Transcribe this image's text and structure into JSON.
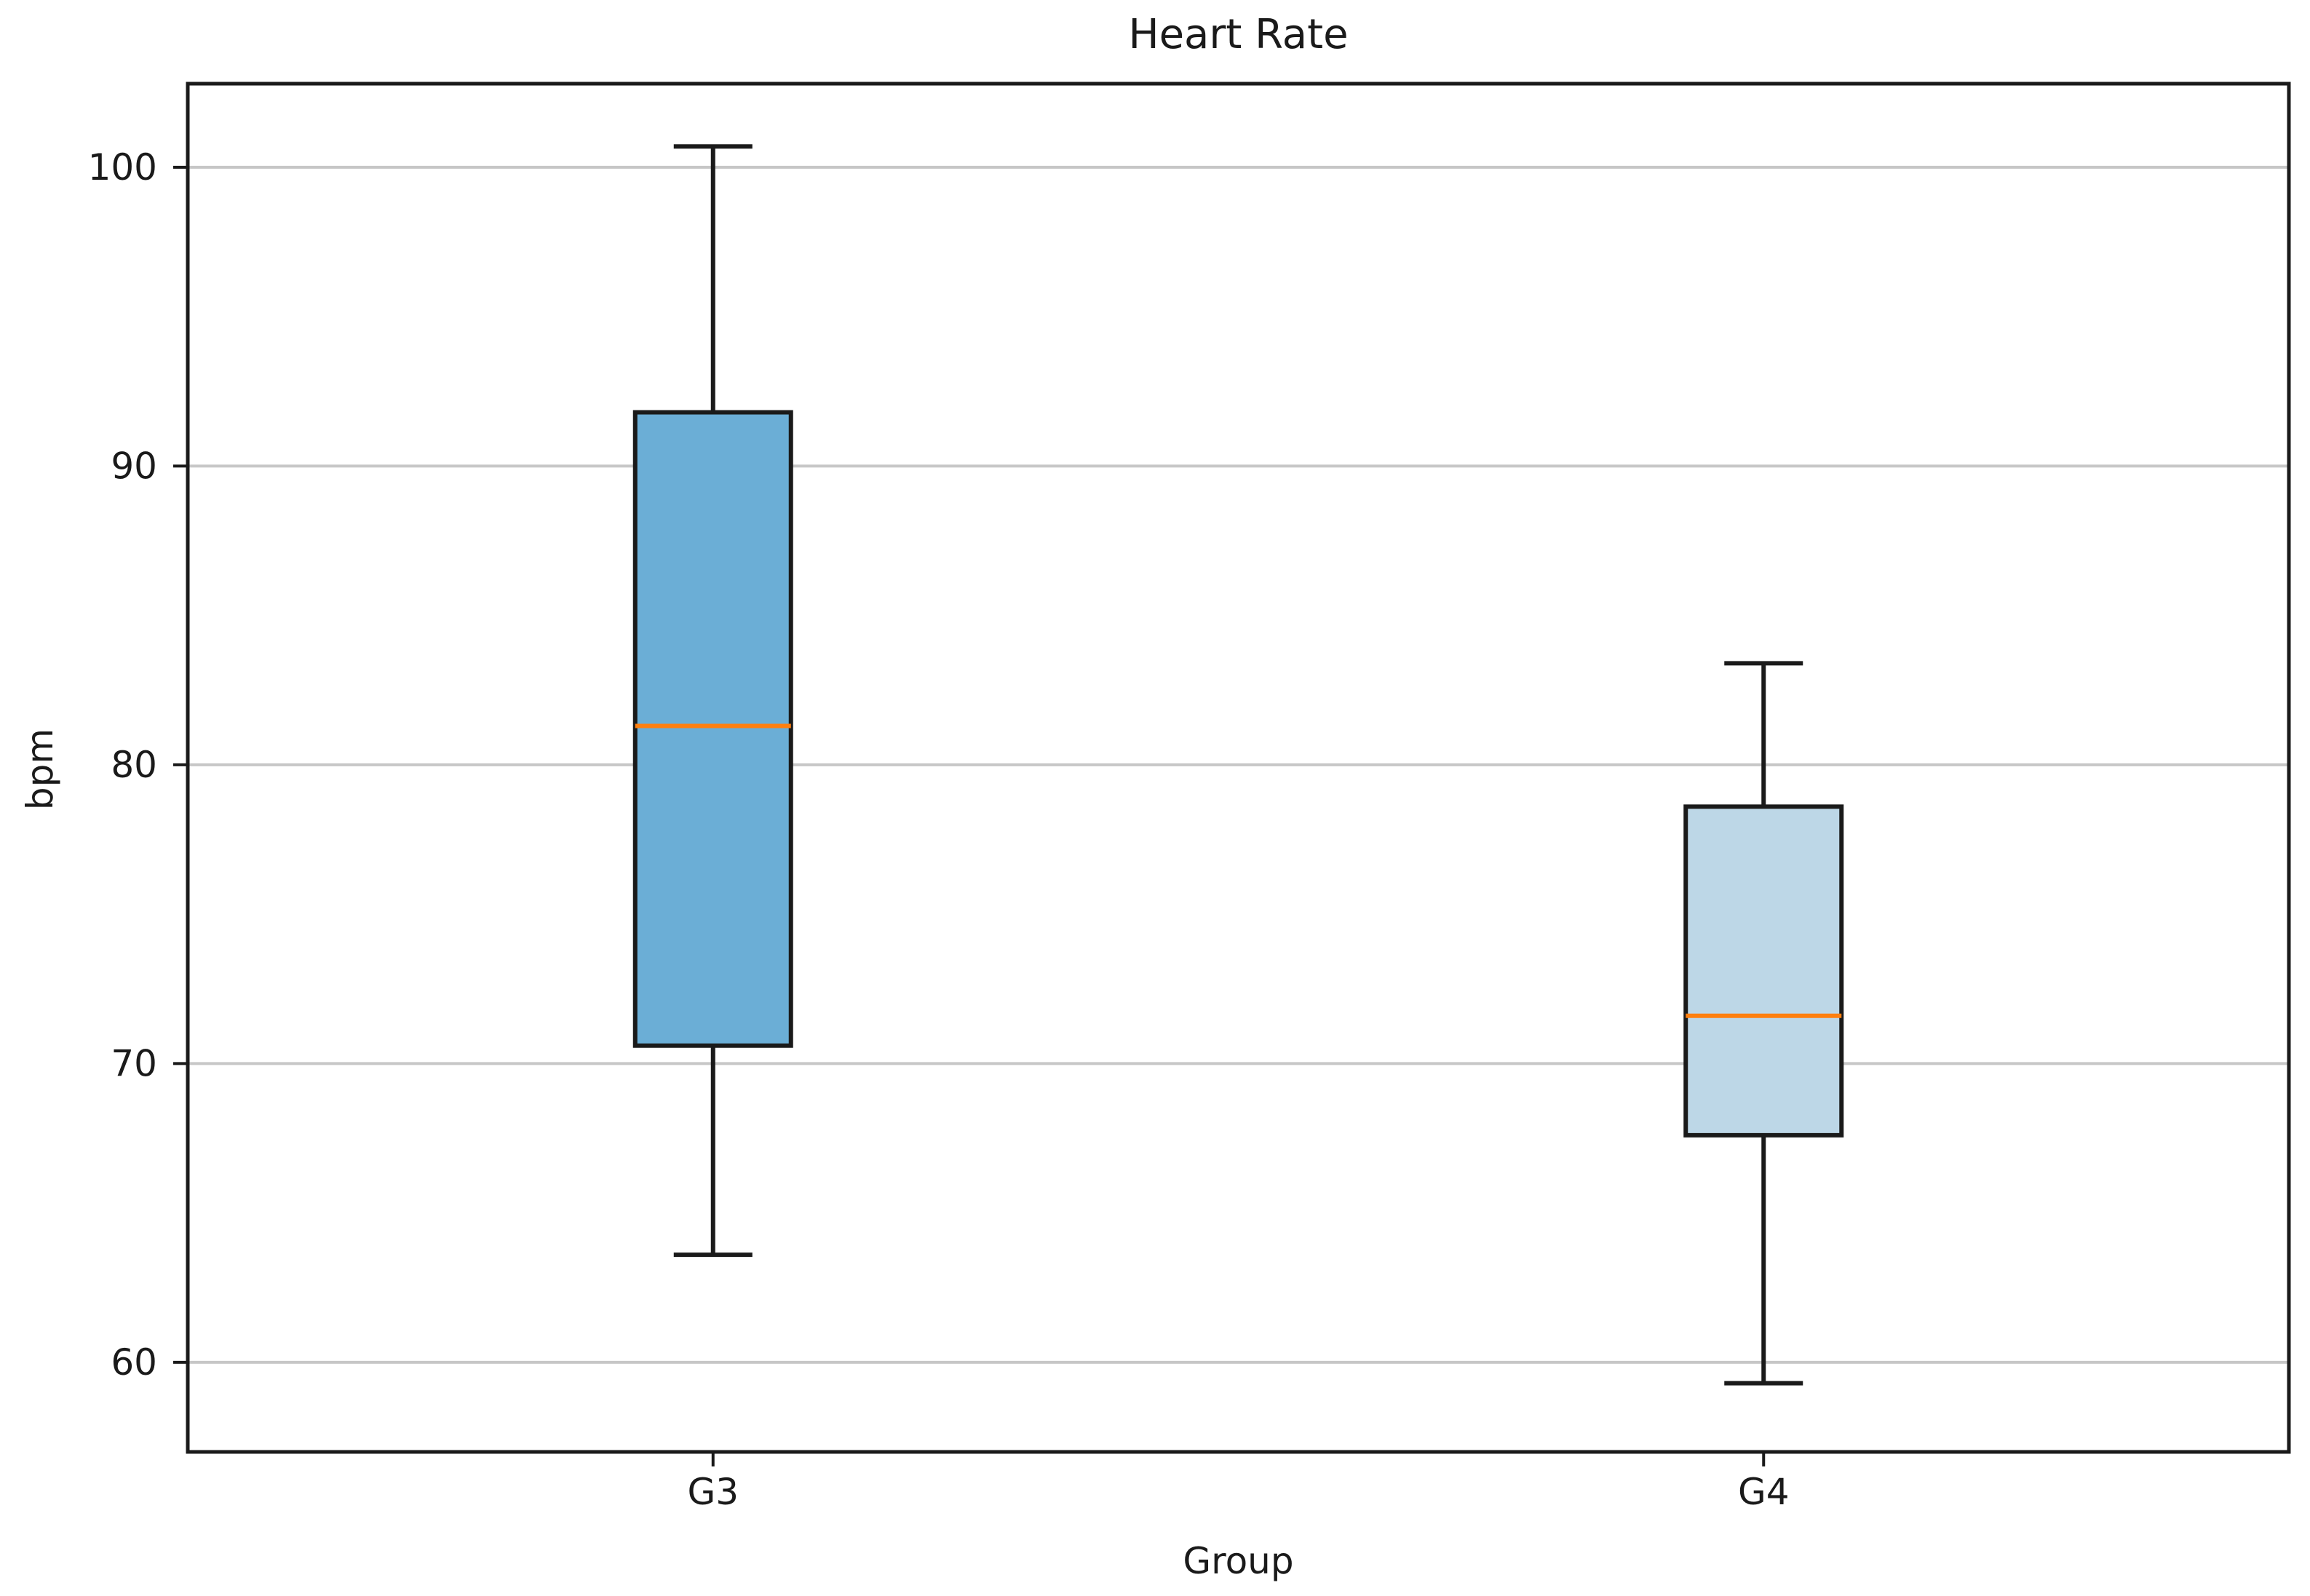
{
  "figure": {
    "title": "Heart Rate",
    "xlabel": "Group",
    "ylabel": "bpm"
  },
  "chart_data": {
    "type": "boxplot",
    "title": "Heart Rate",
    "xlabel": "Group",
    "ylabel": "bpm",
    "categories": [
      "G3",
      "G4"
    ],
    "ylim": [
      57.0,
      102.8
    ],
    "yticks": [
      60,
      70,
      80,
      90,
      100
    ],
    "grid": "horizontal-y",
    "legend": "none",
    "series": [
      {
        "name": "G3",
        "whisker_low": 63.6,
        "q1": 70.6,
        "median": 81.3,
        "q3": 91.8,
        "whisker_high": 100.7,
        "fill_color": "#6baed6"
      },
      {
        "name": "G4",
        "whisker_low": 59.3,
        "q1": 67.6,
        "median": 71.6,
        "q3": 78.6,
        "whisker_high": 83.4,
        "fill_color": "#bdd7e7"
      }
    ],
    "colors": {
      "median_line": "#ff7f0e",
      "box_edge": "#1a1a1a",
      "whisker": "#1a1a1a",
      "gridline": "#c7c7c7",
      "spine": "#1a1a1a",
      "tick_text": "#1a1a1a",
      "background": "#ffffff"
    }
  }
}
